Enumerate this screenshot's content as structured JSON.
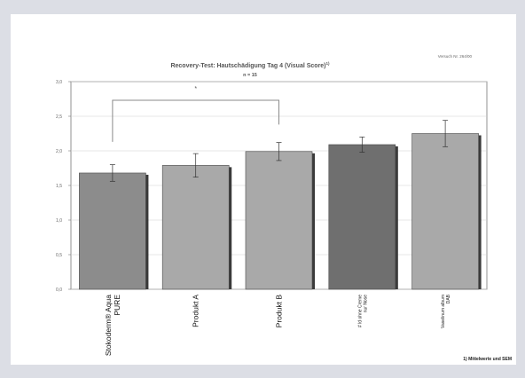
{
  "chart_data": {
    "type": "bar",
    "title": "Recovery-Test: Hautschädigung Tag 4 (Visual Score)",
    "title_sup": "1)",
    "subtitle": "n = 15",
    "note_topright": "Versuch Nr. 264/00",
    "footnote": "1) Mittelwerte und SEM",
    "ylim": [
      0,
      3.0
    ],
    "yticks": [
      "0,0",
      "0,5",
      "1,0",
      "1,5",
      "2,0",
      "2,5",
      "3,0"
    ],
    "categories": [
      [
        "Stokoderm® Aqua",
        "PURE"
      ],
      [
        "Produkt A"
      ],
      [
        "Produkt B"
      ],
      [
        "# ld ohne Creme",
        "nur Nose"
      ],
      [
        "Vaselinum album",
        "DAB"
      ]
    ],
    "values": [
      1.68,
      1.79,
      1.99,
      2.09,
      2.25
    ],
    "errors": [
      0.12,
      0.17,
      0.13,
      0.11,
      0.19
    ],
    "bar_colors": [
      "#8c8c8c",
      "#a9a9a9",
      "#a9a9a9",
      "#6f6f6f",
      "#a9a9a9"
    ],
    "significance": {
      "from": 0,
      "to": 2,
      "label": "*"
    },
    "grid": true
  }
}
